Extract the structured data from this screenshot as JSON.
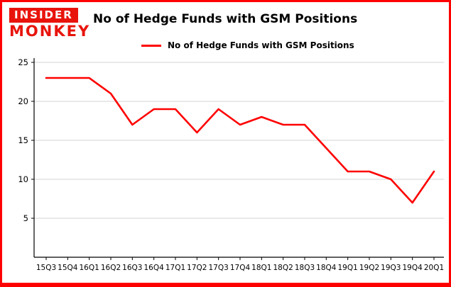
{
  "logo": {
    "line1": "INSIDER",
    "line2": "MONKEY"
  },
  "header": {
    "title": "No of Hedge Funds with GSM Positions"
  },
  "legend": {
    "label": "No of Hedge Funds with GSM Positions"
  },
  "chart_data": {
    "type": "line",
    "title": "No of Hedge Funds with GSM Positions",
    "categories": [
      "15Q3",
      "15Q4",
      "16Q1",
      "16Q2",
      "16Q3",
      "16Q4",
      "17Q1",
      "17Q2",
      "17Q3",
      "17Q4",
      "18Q1",
      "18Q2",
      "18Q3",
      "18Q4",
      "19Q1",
      "19Q2",
      "19Q3",
      "19Q4",
      "20Q1"
    ],
    "values": [
      23,
      23,
      23,
      21,
      17,
      19,
      19,
      16,
      19,
      17,
      18,
      17,
      17,
      14,
      11,
      11,
      10,
      7,
      11
    ],
    "xlabel": "",
    "ylabel": "",
    "ylim": [
      0,
      25
    ],
    "yticks": [
      5,
      10,
      15,
      20,
      25
    ],
    "grid": true,
    "legend_position": "top-left",
    "series_name": "No of Hedge Funds with GSM Positions"
  },
  "colors": {
    "accent": "#fe0000",
    "line": "#fe0000",
    "grid": "#d3d3d3",
    "axis": "#000000",
    "text": "#000000",
    "logo_red": "#e8140c",
    "background": "#ffffff",
    "frame_border": "#fe0000"
  }
}
